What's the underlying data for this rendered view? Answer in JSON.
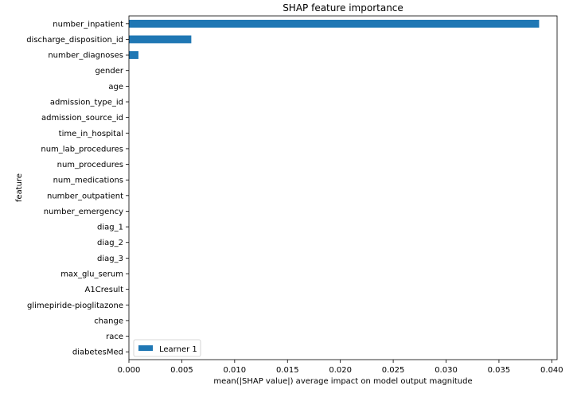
{
  "chart_data": {
    "type": "bar",
    "orientation": "horizontal",
    "title": "SHAP feature importance",
    "xlabel": "mean(|SHAP value|) average impact on model output magnitude",
    "ylabel": "feature",
    "xlim": [
      0,
      0.0405
    ],
    "x_ticks": [
      "0.000",
      "0.005",
      "0.010",
      "0.015",
      "0.020",
      "0.025",
      "0.030",
      "0.035",
      "0.040"
    ],
    "categories": [
      "number_inpatient",
      "discharge_disposition_id",
      "number_diagnoses",
      "gender",
      "age",
      "admission_type_id",
      "admission_source_id",
      "time_in_hospital",
      "num_lab_procedures",
      "num_procedures",
      "num_medications",
      "number_outpatient",
      "number_emergency",
      "diag_1",
      "diag_2",
      "diag_3",
      "max_glu_serum",
      "A1Cresult",
      "glimepiride-pioglitazone",
      "change",
      "race",
      "diabetesMed"
    ],
    "series": [
      {
        "name": "Learner 1",
        "color": "#1f77b4",
        "values": [
          0.0388,
          0.0059,
          0.0009,
          0,
          0,
          0,
          0,
          0,
          0,
          0,
          0,
          0,
          0,
          0,
          0,
          0,
          0,
          0,
          0,
          0,
          0,
          0
        ]
      }
    ],
    "legend": "lower-left",
    "grid": false
  }
}
